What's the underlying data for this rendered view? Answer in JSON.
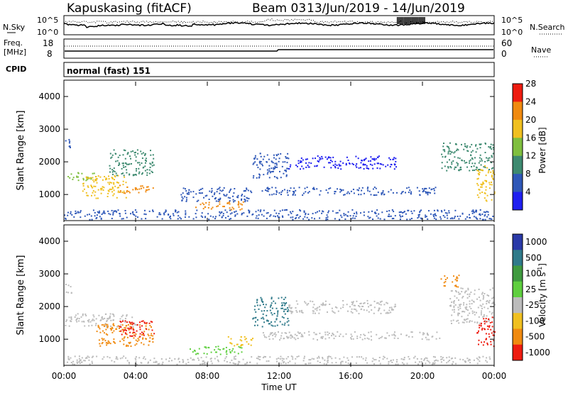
{
  "header": {
    "station": "Kapuskasing (fitACF)",
    "beam": "Beam 03",
    "date_range": "13/Jun/2019 - 14/Jun/2019"
  },
  "noise_panel": {
    "left_label": "N.Sky",
    "right_label": "N.Search",
    "left_ticks": [
      "10^5",
      "10^0"
    ],
    "right_ticks": [
      "10^5",
      "10^0"
    ]
  },
  "freq_panel": {
    "left_label_1": "Freq.",
    "left_label_2": "[MHz]",
    "right_label": "Nave",
    "left_ticks": [
      "18",
      "8"
    ],
    "right_ticks": [
      "60",
      "0"
    ]
  },
  "cpid_panel": {
    "label": "CPID",
    "program": "normal (fast) 151"
  },
  "chart_data": [
    {
      "type": "heatmap",
      "name": "power",
      "ylabel": "Slant Range [km]",
      "ylim": [
        200,
        4500
      ],
      "yticks": [
        1000,
        2000,
        3000,
        4000
      ],
      "colorbar": {
        "label": "Power [dB]",
        "ticks": [
          4,
          8,
          12,
          16,
          20,
          24,
          28
        ],
        "colors": [
          "#1f1ff0",
          "#2f58b8",
          "#3e8a70",
          "#7fbf3f",
          "#f0c020",
          "#f08a10",
          "#ee1c10"
        ]
      },
      "blobs": [
        {
          "t": [
            0.0,
            0.4
          ],
          "r": [
            2400,
            2700
          ],
          "v": 9
        },
        {
          "t": [
            0.0,
            1.8
          ],
          "r": [
            1450,
            1700
          ],
          "v": 19
        },
        {
          "t": [
            1.0,
            3.5
          ],
          "r": [
            900,
            1600
          ],
          "v": 22
        },
        {
          "t": [
            3.0,
            5.0
          ],
          "r": [
            1050,
            1300
          ],
          "v": 25
        },
        {
          "t": [
            2.5,
            5.0
          ],
          "r": [
            1600,
            2400
          ],
          "v": 13
        },
        {
          "t": [
            7.3,
            10.0
          ],
          "r": [
            550,
            800
          ],
          "v": 27
        },
        {
          "t": [
            6.5,
            10.5
          ],
          "r": [
            800,
            1250
          ],
          "v": 9
        },
        {
          "t": [
            10.5,
            12.5
          ],
          "r": [
            1500,
            2300
          ],
          "v": 11
        },
        {
          "t": [
            11.0,
            21.0
          ],
          "r": [
            1000,
            1250
          ],
          "v": 11
        },
        {
          "t": [
            12.5,
            18.5
          ],
          "r": [
            1800,
            2200
          ],
          "v": 7
        },
        {
          "t": [
            21.0,
            24.0
          ],
          "r": [
            1750,
            2600
          ],
          "v": 14
        },
        {
          "t": [
            23.0,
            24.0
          ],
          "r": [
            800,
            1900
          ],
          "v": 22
        },
        {
          "t": [
            0.0,
            24.0
          ],
          "r": [
            250,
            550
          ],
          "v": 8
        }
      ]
    },
    {
      "type": "heatmap",
      "name": "velocity",
      "xlabel": "Time UT",
      "ylabel": "Slant Range [km]",
      "ylim": [
        200,
        4500
      ],
      "yticks": [
        1000,
        2000,
        3000,
        4000
      ],
      "xticks": [
        "00:00",
        "04:00",
        "08:00",
        "12:00",
        "16:00",
        "20:00",
        "00:00"
      ],
      "colorbar": {
        "label": "Velocity [m s-1]",
        "label_main": "Velocity [m s",
        "label_sup": "-1",
        "label_end": "]",
        "ticks": [
          "1000",
          "500",
          "100",
          "25",
          "-25",
          "-100",
          "-500",
          "-1000"
        ],
        "colors": [
          "#2a3aa8",
          "#2f7a8a",
          "#3f9a3f",
          "#5fcf3f",
          "#bcbcbc",
          "#f0c020",
          "#f08a10",
          "#ee1c10"
        ]
      },
      "blobs": [
        {
          "t": [
            0.0,
            0.4
          ],
          "r": [
            2400,
            2700
          ],
          "v": "grey"
        },
        {
          "t": [
            0.0,
            4.0
          ],
          "r": [
            1400,
            1800
          ],
          "v": "grey"
        },
        {
          "t": [
            1.8,
            5.0
          ],
          "r": [
            800,
            1500
          ],
          "v": "orange"
        },
        {
          "t": [
            3.0,
            5.0
          ],
          "r": [
            1100,
            1600
          ],
          "v": "red"
        },
        {
          "t": [
            7.0,
            10.0
          ],
          "r": [
            550,
            800
          ],
          "v": "green"
        },
        {
          "t": [
            9.0,
            10.5
          ],
          "r": [
            800,
            1100
          ],
          "v": "yellow"
        },
        {
          "t": [
            10.5,
            12.5
          ],
          "r": [
            1400,
            2300
          ],
          "v": "blue"
        },
        {
          "t": [
            11.0,
            21.0
          ],
          "r": [
            1000,
            1250
          ],
          "v": "grey"
        },
        {
          "t": [
            12.5,
            18.5
          ],
          "r": [
            1800,
            2200
          ],
          "v": "grey"
        },
        {
          "t": [
            21.0,
            22.0
          ],
          "r": [
            2600,
            3000
          ],
          "v": "orange"
        },
        {
          "t": [
            21.5,
            24.0
          ],
          "r": [
            1500,
            2600
          ],
          "v": "grey"
        },
        {
          "t": [
            23.0,
            24.0
          ],
          "r": [
            800,
            1700
          ],
          "v": "red"
        },
        {
          "t": [
            0.0,
            24.0
          ],
          "r": [
            250,
            500
          ],
          "v": "grey"
        }
      ]
    }
  ]
}
